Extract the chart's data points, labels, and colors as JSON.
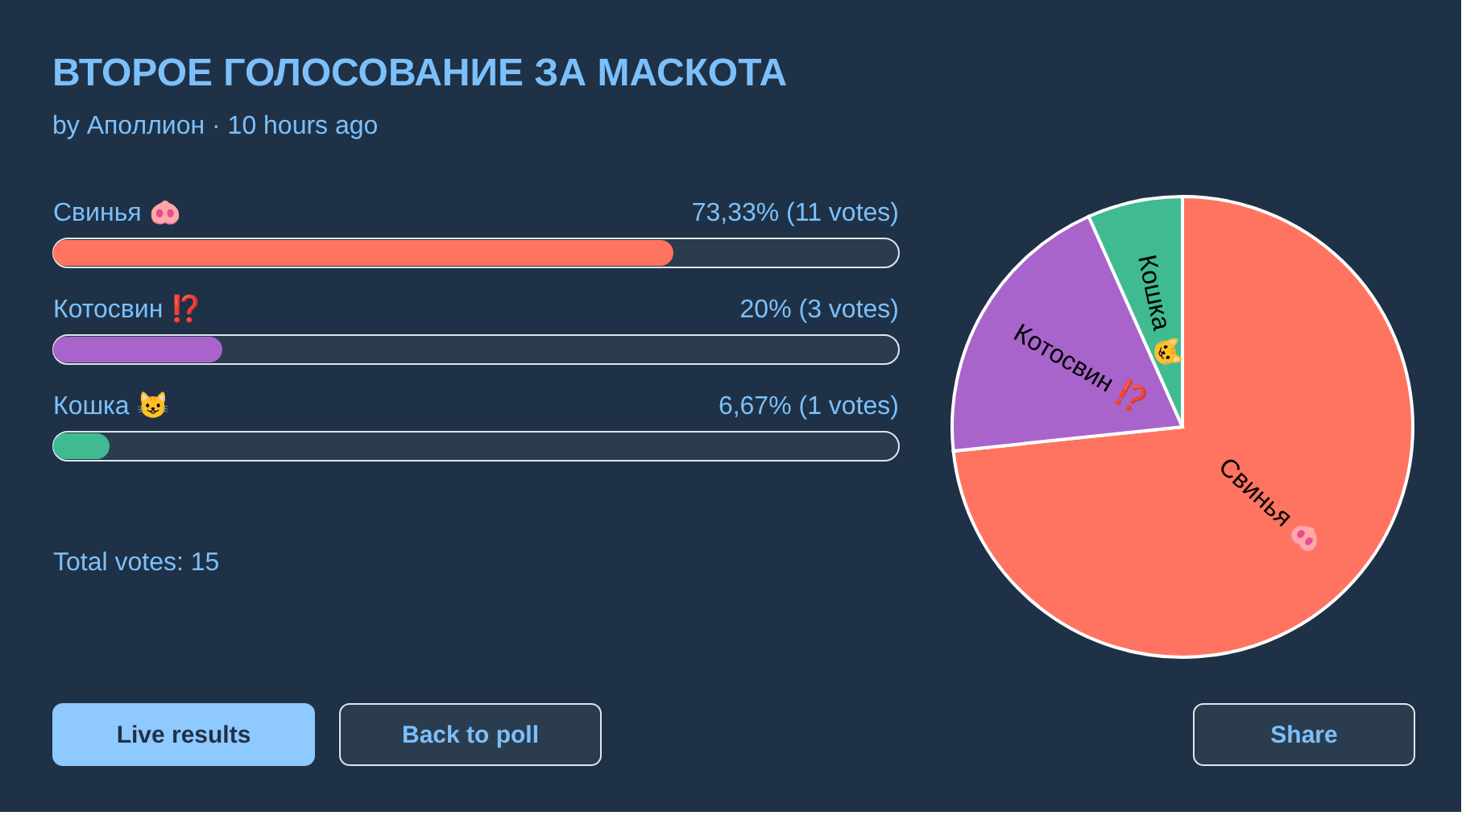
{
  "chart_data": [
    {
      "type": "bar",
      "orientation": "horizontal",
      "title": "ВТОРОЕ ГОЛОСОВАНИЕ ЗА МАСКОТА",
      "subtitle": "by Аполлион · 10 hours ago",
      "categories": [
        "Свинья 🐽",
        "Котосвин ⁉️",
        "Кошка 😺"
      ],
      "values": [
        73.33,
        20,
        6.67
      ],
      "colors": [
        "#ff7461",
        "#a964cb",
        "#40bb91"
      ],
      "value_labels": [
        "73,33% (11 votes)",
        "20% (3 votes)",
        "6,67% (1 votes)"
      ],
      "xlim": [
        0,
        100
      ],
      "tick_labels": false,
      "annotations": [
        "Total votes: 15"
      ]
    },
    {
      "type": "pie",
      "categories": [
        "Свинья 🐽",
        "Котосвин ⁉️",
        "Кошка 😺"
      ],
      "values": [
        73.33,
        20,
        6.67
      ],
      "colors": [
        "#ff7461",
        "#a964cb",
        "#40bb91"
      ]
    },
    {
      "type": "other",
      "annotations": [
        "Live results",
        "Back to poll",
        "Share"
      ]
    }
  ]
}
